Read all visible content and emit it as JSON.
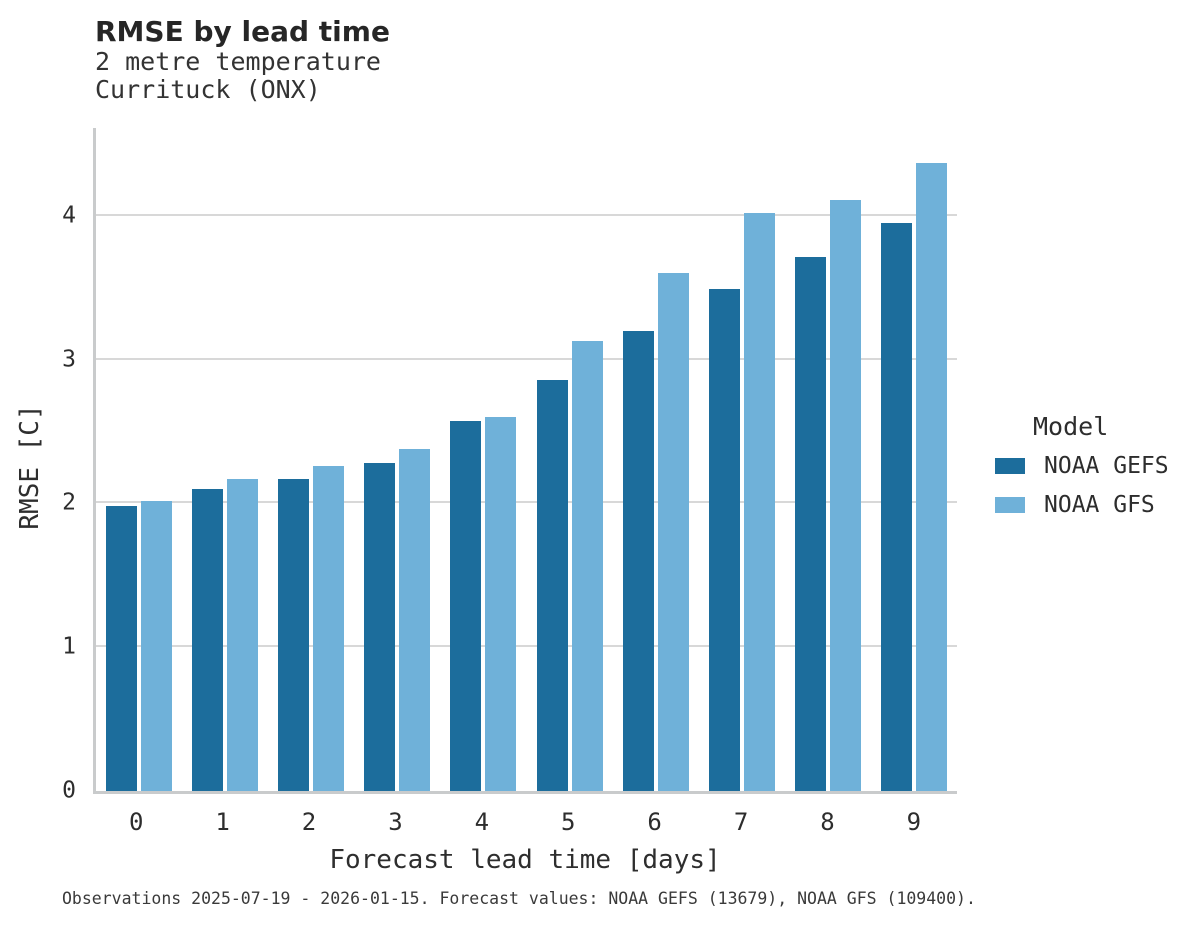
{
  "title": "RMSE by lead time",
  "subtitle": {
    "line1": "2 metre temperature",
    "line2": "Currituck (ONX)"
  },
  "footer": "Observations 2025-07-19 - 2026-01-15. Forecast values: NOAA GEFS (13679), NOAA GFS (109400).",
  "legend": {
    "title": "Model"
  },
  "colors": {
    "gefs_dark_blue": "#1c6d9c",
    "gfs_light_blue": "#6fb1d9",
    "gridline": "#d8d8d8",
    "axis_spine": "#c9cbcc"
  },
  "chart_data": {
    "type": "bar",
    "title": "RMSE by lead time",
    "subtitle": "2 metre temperature, Currituck (ONX)",
    "xlabel": "Forecast lead time [days]",
    "ylabel": "RMSE [C]",
    "categories": [
      "0",
      "1",
      "2",
      "3",
      "4",
      "5",
      "6",
      "7",
      "8",
      "9"
    ],
    "series": [
      {
        "name": "NOAA GEFS",
        "color": "#1c6d9c",
        "values": [
          1.98,
          2.1,
          2.17,
          2.28,
          2.57,
          2.86,
          3.2,
          3.49,
          3.71,
          3.95
        ]
      },
      {
        "name": "NOAA GFS",
        "color": "#6fb1d9",
        "values": [
          2.02,
          2.17,
          2.26,
          2.38,
          2.6,
          3.13,
          3.6,
          4.02,
          4.11,
          4.37
        ]
      }
    ],
    "yticks": [
      0,
      1,
      2,
      3,
      4
    ],
    "ylim": [
      0,
      4.61
    ],
    "grid": "horizontal",
    "legend_position": "center-right",
    "bar_layout": "grouped"
  }
}
